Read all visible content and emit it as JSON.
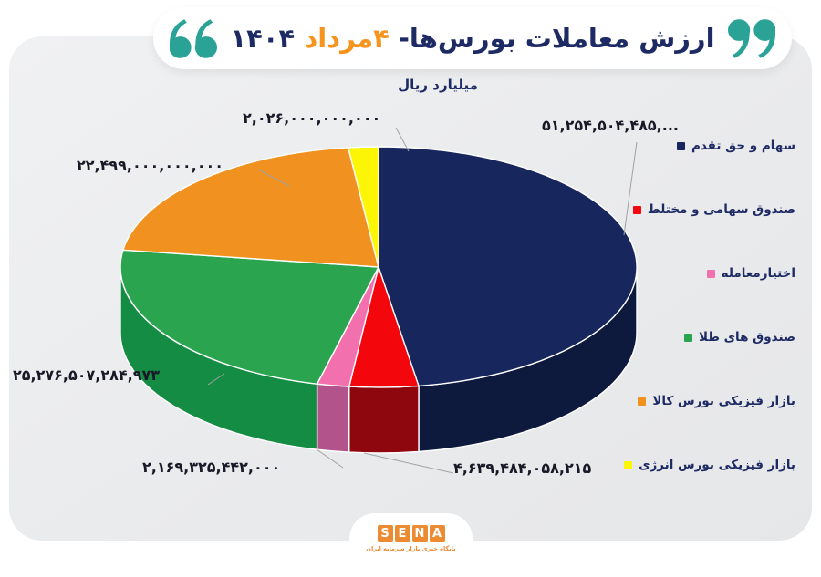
{
  "header": {
    "title_main": "ارزش معاملات بورس‌ها-",
    "title_date": "۴مرداد",
    "title_year": "۱۴۰۴",
    "unit": "میلیارد ریال"
  },
  "colors": {
    "accent_teal": "#2aa396",
    "accent_orange": "#f7941d",
    "title_navy": "#1e2a64",
    "panel_gray": "#ebecee",
    "connector_gray": "#a3a3a3",
    "label_text": "#181826",
    "sena_orange": "#ed8b33"
  },
  "footer": {
    "logo_letters": [
      "S",
      "E",
      "N",
      "A"
    ],
    "tagline": "پایگاه خبری بازار سرمایه ایران"
  },
  "chart_data": {
    "type": "pie",
    "style": "3d",
    "title": "ارزش معاملات بورس‌ها- ۴مرداد ۱۴۰۴",
    "unit": "میلیارد ریال",
    "legend_position": "right",
    "start_angle_deg": 0,
    "direction": "clockwise",
    "slices": [
      {
        "label": "سهام و حق تقدم",
        "display": "۵۱,۲۵۴,۵۰۴,۴۸۵,...",
        "value": 51254504485000,
        "color": "#17265d",
        "side_color": "#0d1a3e"
      },
      {
        "label": "صندوق سهامی و مختلط",
        "display": "۴,۶۳۹,۴۸۴,۰۵۸,۲۱۵",
        "value": 4639484058215,
        "color": "#f3070c",
        "side_color": "#8e060e"
      },
      {
        "label": "اختیارمعامله",
        "display": "۲,۱۶۹,۳۲۵,۴۴۲,۰۰۰",
        "value": 2169325442000,
        "color": "#f170ad",
        "side_color": "#b2538c"
      },
      {
        "label": "صندوق های طلا",
        "display": "۲۵,۲۷۶,۵۰۷,۲۸۴,۹۷۳",
        "value": 25276507284973,
        "color": "#2aa44e",
        "side_color": "#148c43"
      },
      {
        "label": "بازار فیزیکی بورس کالا",
        "display": "۲۲,۴۹۹,۰۰۰,۰۰۰,۰۰۰",
        "value": 22499000000000,
        "color": "#f1911f",
        "side_color": "#b86a12"
      },
      {
        "label": "بازار فیزیکی بورس انرژی",
        "display": "۲,۰۲۶,۰۰۰,۰۰۰,۰۰۰",
        "value": 2026000000000,
        "color": "#fdf506",
        "side_color": "#c2ba02"
      }
    ]
  }
}
